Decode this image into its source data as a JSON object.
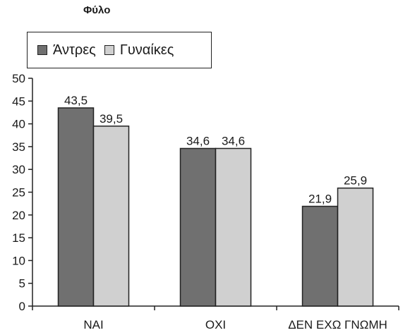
{
  "chart_data": {
    "type": "bar",
    "title": "Φύλο",
    "categories": [
      "ΝΑΙ",
      "ΟΧΙ",
      "ΔΕΝ ΕΧΩ ΓΝΩΜΗ"
    ],
    "series": [
      {
        "name": "Άντρες",
        "values": [
          43.5,
          34.6,
          21.9
        ],
        "value_labels": [
          "43,5",
          "34,6",
          "21,9"
        ],
        "color": "#707070"
      },
      {
        "name": "Γυναίκες",
        "values": [
          39.5,
          34.6,
          25.9
        ],
        "value_labels": [
          "39,5",
          "34,6",
          "25,9"
        ],
        "color": "#d0d0d0"
      }
    ],
    "yticks": [
      0,
      5,
      10,
      15,
      20,
      25,
      30,
      35,
      40,
      45,
      50
    ],
    "ylim": [
      0,
      50
    ],
    "grid": false,
    "legend_position": "top-left"
  }
}
